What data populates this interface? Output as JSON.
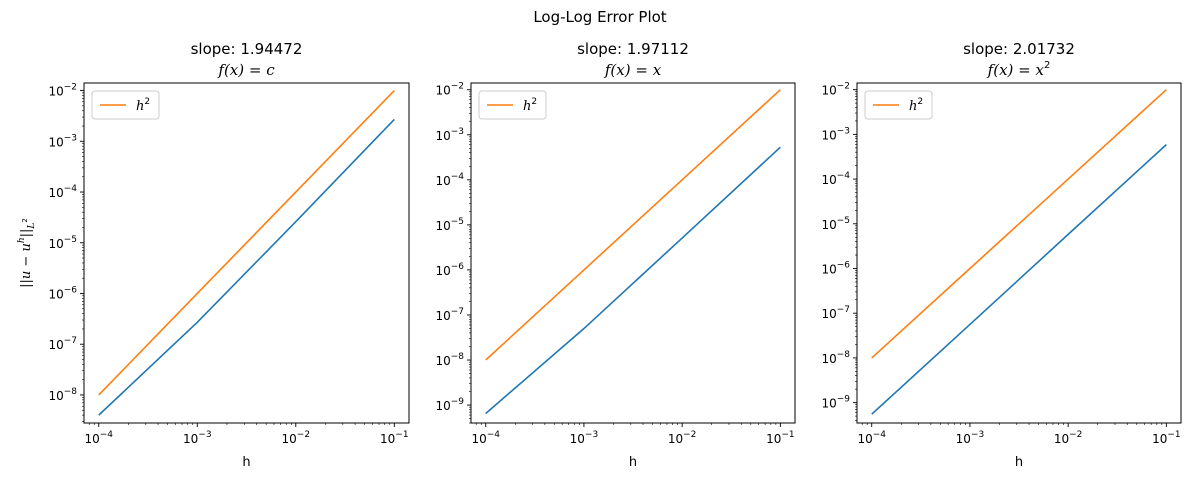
{
  "figure": {
    "title": "Log-Log Error Plot"
  },
  "colors": {
    "error": "#1f77b4",
    "reference": "#ff7f0e",
    "axis": "#000000",
    "legend_border": "#cccccc"
  },
  "chart_data": [
    {
      "type": "line",
      "title": "slope: 1.94472",
      "subtitle_tex": "f(x) = c",
      "xlabel": "h",
      "ylabel": "||u − u^h||_{L^2}",
      "xscale": "log",
      "yscale": "log",
      "xlim": [
        7.08e-05,
        0.141
      ],
      "ylim": [
        2.8e-09,
        0.0141
      ],
      "x_ticks": [
        0.0001,
        0.001,
        0.01,
        0.1
      ],
      "y_ticks": [
        1e-08,
        1e-07,
        1e-06,
        1e-05,
        0.0001,
        0.001,
        0.01
      ],
      "grid": false,
      "legend": {
        "position": "upper-left",
        "entries": [
          "h^2"
        ]
      },
      "series": [
        {
          "name": "",
          "color_key": "error",
          "x": [
            0.0001,
            0.001,
            0.01,
            0.1
          ],
          "y": [
            4e-09,
            2.7e-07,
            2.6e-05,
            0.0027
          ]
        },
        {
          "name": "h^2",
          "color_key": "reference",
          "x": [
            0.0001,
            0.001,
            0.01,
            0.1
          ],
          "y": [
            1e-08,
            1e-06,
            0.0001,
            0.01
          ]
        }
      ]
    },
    {
      "type": "line",
      "title": "slope: 1.97112",
      "subtitle_tex": "f(x) = x",
      "xlabel": "h",
      "ylabel": "",
      "xscale": "log",
      "yscale": "log",
      "xlim": [
        7.08e-05,
        0.141
      ],
      "ylim": [
        4e-10,
        0.0141
      ],
      "x_ticks": [
        0.0001,
        0.001,
        0.01,
        0.1
      ],
      "y_ticks": [
        1e-09,
        1e-08,
        1e-07,
        1e-06,
        1e-05,
        0.0001,
        0.001,
        0.01
      ],
      "grid": false,
      "legend": {
        "position": "upper-left",
        "entries": [
          "h^2"
        ]
      },
      "series": [
        {
          "name": "",
          "color_key": "error",
          "x": [
            0.0001,
            0.001,
            0.01,
            0.1
          ],
          "y": [
            6.5e-10,
            5e-08,
            5.1e-06,
            0.00053
          ]
        },
        {
          "name": "h^2",
          "color_key": "reference",
          "x": [
            0.0001,
            0.001,
            0.01,
            0.1
          ],
          "y": [
            1e-08,
            1e-06,
            0.0001,
            0.01
          ]
        }
      ]
    },
    {
      "type": "line",
      "title": "slope: 2.01732",
      "subtitle_tex": "f(x) = x^2",
      "xlabel": "h",
      "ylabel": "",
      "xscale": "log",
      "yscale": "log",
      "xlim": [
        7.08e-05,
        0.141
      ],
      "ylim": [
        3.5e-10,
        0.0141
      ],
      "x_ticks": [
        0.0001,
        0.001,
        0.01,
        0.1
      ],
      "y_ticks": [
        1e-09,
        1e-08,
        1e-07,
        1e-06,
        1e-05,
        0.0001,
        0.001,
        0.01
      ],
      "grid": false,
      "legend": {
        "position": "upper-left",
        "entries": [
          "h^2"
        ]
      },
      "series": [
        {
          "name": "",
          "color_key": "error",
          "x": [
            0.0001,
            0.001,
            0.01,
            0.1
          ],
          "y": [
            5.5e-10,
            5.6e-08,
            5.8e-06,
            0.00059
          ]
        },
        {
          "name": "h^2",
          "color_key": "reference",
          "x": [
            0.0001,
            0.001,
            0.01,
            0.1
          ],
          "y": [
            1e-08,
            1e-06,
            0.0001,
            0.01
          ]
        }
      ]
    }
  ]
}
